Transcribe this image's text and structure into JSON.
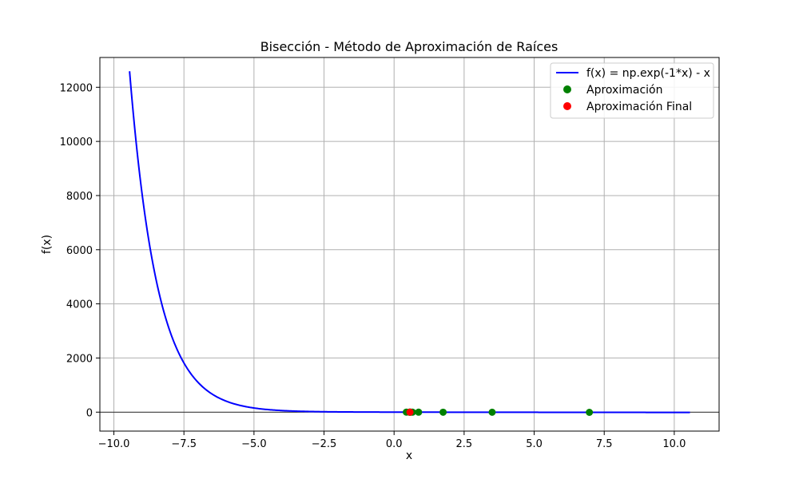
{
  "chart_data": {
    "type": "line",
    "title": "Bisección - Método de Aproximación de Raíces",
    "xlabel": "x",
    "ylabel": "f(x)",
    "xlim": [
      -10.5,
      11.6
    ],
    "ylim": [
      -700,
      13100
    ],
    "xticks": [
      -10.0,
      -7.5,
      -5.0,
      -2.5,
      0.0,
      2.5,
      5.0,
      7.5,
      10.0
    ],
    "xtick_labels": [
      "−10.0",
      "−7.5",
      "−5.0",
      "−2.5",
      "0.0",
      "2.5",
      "5.0",
      "7.5",
      "10.0"
    ],
    "yticks": [
      0,
      2000,
      4000,
      6000,
      8000,
      10000,
      12000
    ],
    "ytick_labels": [
      "0",
      "2000",
      "4000",
      "6000",
      "8000",
      "10000",
      "12000"
    ],
    "grid": true,
    "legend_position": "top-right",
    "series": [
      {
        "name": "f(x) = np.exp(-1*x) - x",
        "kind": "line",
        "color": "#0000ff",
        "function": "exp(-x) - x",
        "x_range": [
          -9.44,
          10.56
        ]
      },
      {
        "name": "Aproximación",
        "kind": "scatter",
        "color": "#008000",
        "x": [
          6.97,
          3.5,
          1.75,
          0.875,
          0.4375,
          0.65625,
          0.546875,
          0.6015625,
          0.57421875,
          0.560546875
        ],
        "y": [
          -6.97,
          -3.47,
          -1.58,
          -0.46,
          0.21,
          -0.14,
          0.03,
          -0.05,
          -0.01,
          0.01
        ]
      },
      {
        "name": "Aproximación Final",
        "kind": "scatter",
        "color": "#ff0000",
        "x": [
          0.5671
        ],
        "y": [
          0.0
        ]
      }
    ]
  }
}
